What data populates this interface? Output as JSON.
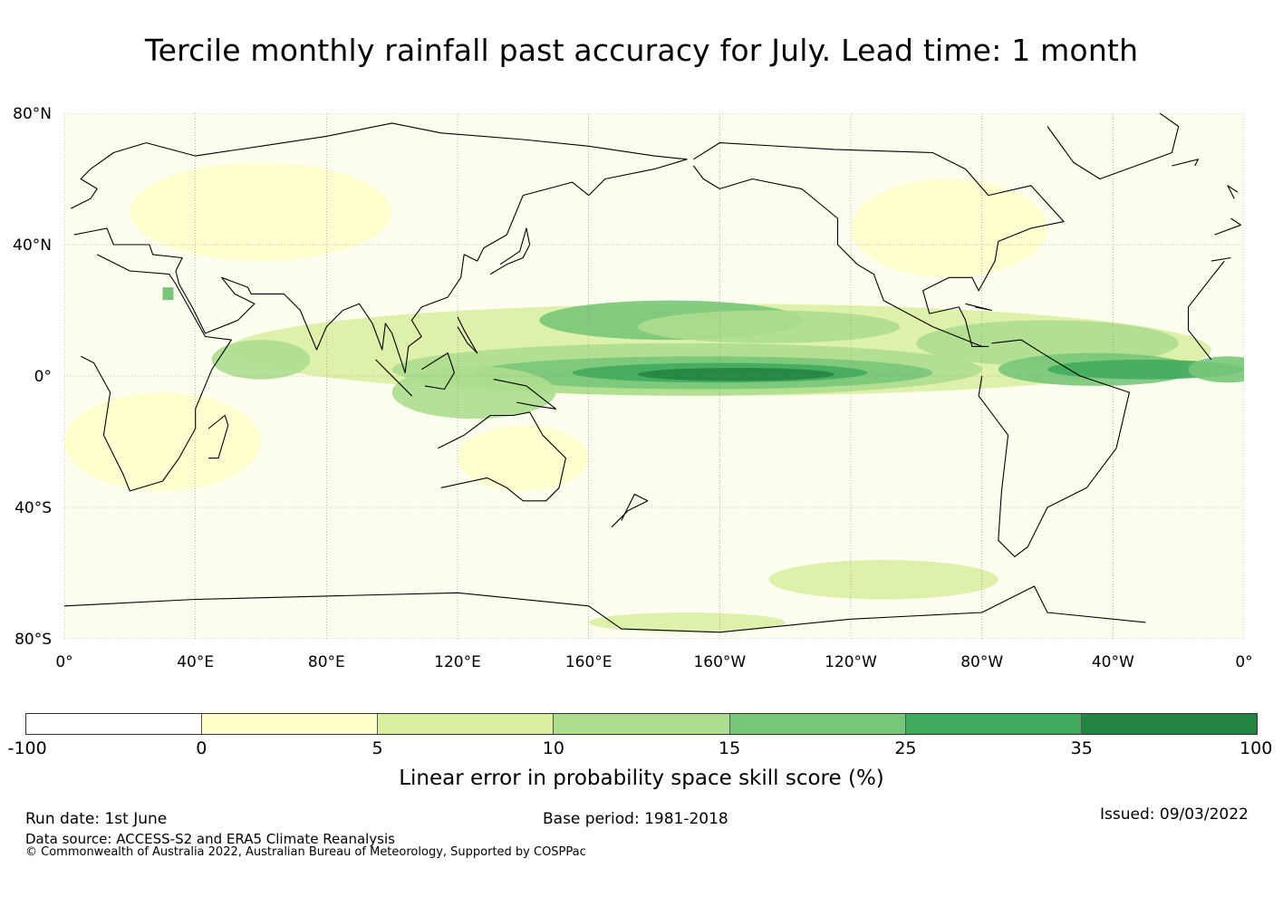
{
  "title": "Tercile monthly rainfall past accuracy for July. Lead time: 1 month",
  "map": {
    "extent": {
      "lon_min": 0,
      "lon_max": 360,
      "lat_min": -80,
      "lat_max": 80
    },
    "lat_labels": [
      "80°N",
      "40°N",
      "0°",
      "40°S",
      "80°S"
    ],
    "lon_labels": [
      "0°",
      "40°E",
      "80°E",
      "120°E",
      "160°E",
      "160°W",
      "120°W",
      "80°W",
      "40°W",
      "0°"
    ],
    "land_color": "#000000",
    "grid_color": "#888888"
  },
  "colorbar": {
    "colors": [
      "#ffffff",
      "#ffffcc",
      "#d9f0a3",
      "#addd8e",
      "#78c679",
      "#41ab5d",
      "#238443"
    ],
    "ticks": [
      "-100",
      "0",
      "5",
      "10",
      "15",
      "25",
      "35",
      "100"
    ],
    "label": "Linear error in probability space skill score (%)"
  },
  "footer": {
    "run_date": "Run date: 1st June",
    "base_period": "Base period: 1981-2018",
    "issued": "Issued: 09/03/2022",
    "data_source": "Data source: ACCESS-S2 and ERA5 Climate Reanalysis",
    "copyright": "© Commonwealth of Australia 2022, Australian Bureau of Meteorology, Supported by COSPPac"
  }
}
